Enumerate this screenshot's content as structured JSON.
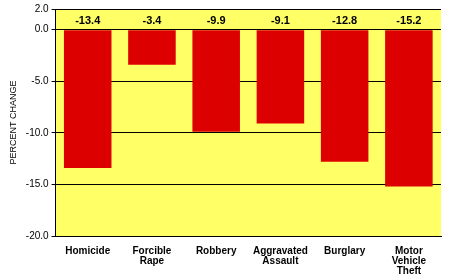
{
  "chart_data": {
    "type": "bar",
    "ylabel": "PERCENT CHANGE",
    "categories": [
      "Homicide",
      "Forcible Rape",
      "Robbery",
      "Aggravated Assault",
      "Burglary",
      "Motor Vehicle Theft"
    ],
    "values": [
      -13.4,
      -3.4,
      -9.9,
      -9.1,
      -12.8,
      -15.2
    ],
    "color": "#dd0000",
    "ylim": [
      -20,
      2
    ],
    "yticks": [
      {
        "value": -20,
        "label": "-20.0"
      },
      {
        "value": -15,
        "label": "-15.0"
      },
      {
        "value": -10,
        "label": "-10.0"
      },
      {
        "value": -5,
        "label": "-5.0"
      },
      {
        "value": 0,
        "label": "0.0"
      },
      {
        "value": 2,
        "label": "2.0"
      }
    ],
    "grid": true,
    "data_labels": true
  }
}
